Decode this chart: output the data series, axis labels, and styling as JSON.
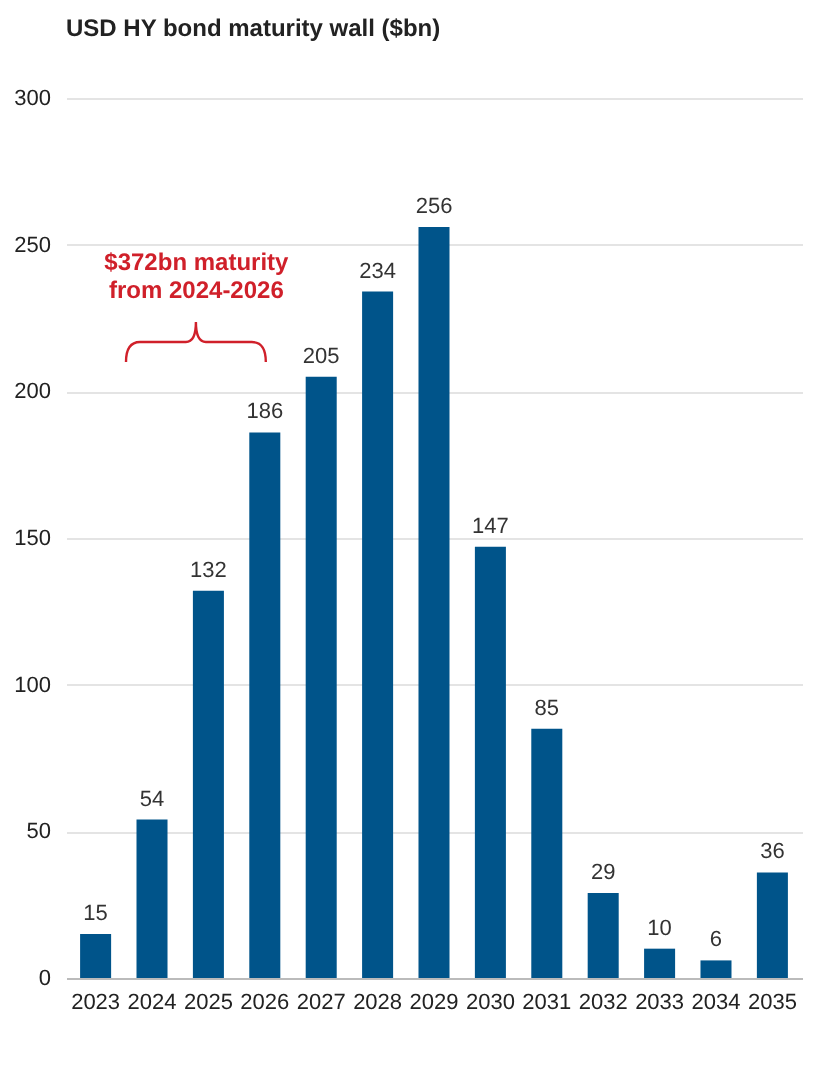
{
  "chart_data": {
    "type": "bar",
    "title": "USD HY bond maturity wall ($bn)",
    "categories": [
      "2023",
      "2024",
      "2025",
      "2026",
      "2027",
      "2028",
      "2029",
      "2030",
      "2031",
      "2032",
      "2033",
      "2034",
      "2035"
    ],
    "values": [
      15,
      54,
      132,
      186,
      205,
      234,
      256,
      147,
      85,
      29,
      10,
      6,
      36
    ],
    "color": "#00548a",
    "ylim": [
      0,
      300
    ],
    "yticks": [
      0,
      50,
      100,
      150,
      200,
      250,
      300
    ],
    "grid": "y",
    "data_labels": true,
    "annotations": [
      "$372bn maturity\nfrom 2024-2026"
    ]
  }
}
